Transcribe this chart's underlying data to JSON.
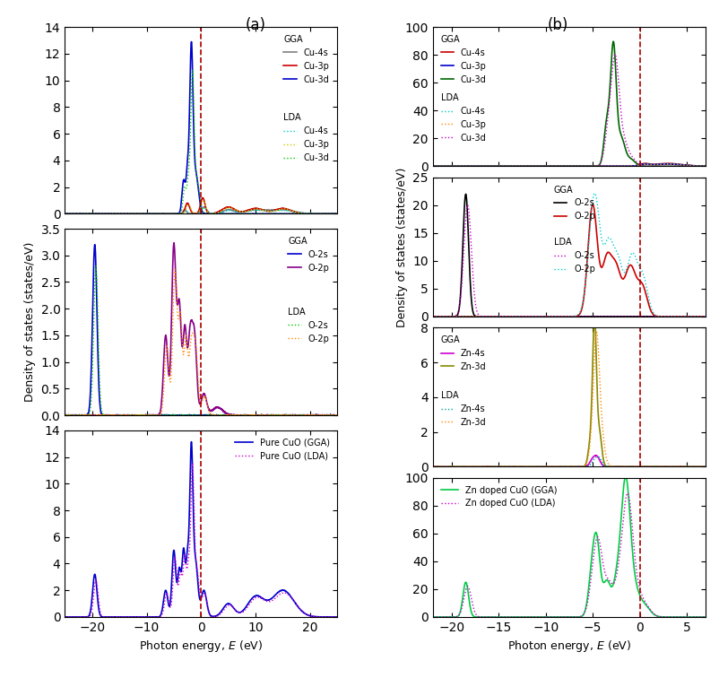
{
  "panel_a_xlim": [
    -25,
    25
  ],
  "panel_b_xlim": [
    -22,
    7
  ],
  "fermi_color": "#aa0000",
  "fig_width": 8.03,
  "fig_height": 7.56,
  "a_panel1_ylim": [
    0,
    14
  ],
  "a_panel1_yticks": [
    0,
    2,
    4,
    6,
    8,
    10,
    12,
    14
  ],
  "a_panel2_ylim": [
    0,
    3.5
  ],
  "a_panel2_yticks": [
    0.0,
    0.5,
    1.0,
    1.5,
    2.0,
    2.5,
    3.0,
    3.5
  ],
  "a_panel3_ylim": [
    0,
    14
  ],
  "a_panel3_yticks": [
    0,
    2,
    4,
    6,
    8,
    10,
    12,
    14
  ],
  "b_panel1_ylim": [
    0,
    100
  ],
  "b_panel1_yticks": [
    0,
    20,
    40,
    60,
    80,
    100
  ],
  "b_panel2_ylim": [
    0,
    25
  ],
  "b_panel2_yticks": [
    0,
    5,
    10,
    15,
    20,
    25
  ],
  "b_panel3_ylim": [
    0,
    8
  ],
  "b_panel3_yticks": [
    0,
    2,
    4,
    6,
    8
  ],
  "b_panel4_ylim": [
    0,
    100
  ],
  "b_panel4_yticks": [
    0,
    20,
    40,
    60,
    80,
    100
  ],
  "colors": {
    "gray": "#808080",
    "red": "#cc0000",
    "blue": "#0000cc",
    "cyan_dot": "#00cccc",
    "yellow_dot": "#cccc00",
    "green_dot": "#00cc00",
    "dark_blue": "#0000cc",
    "purple": "#880088",
    "orange_dot": "#ff8800",
    "black": "#000000",
    "magenta_dot": "#cc00cc",
    "magenta": "#cc00cc",
    "olive": "#888800",
    "cyan_dot3": "#00aaaa",
    "orange_dot2": "#ff8800",
    "green_bright": "#00cc44",
    "dark_green": "#006600"
  },
  "xlabel": "Photon energy, $E$ (eV)",
  "ylabel": "Density of states (states/eV)"
}
